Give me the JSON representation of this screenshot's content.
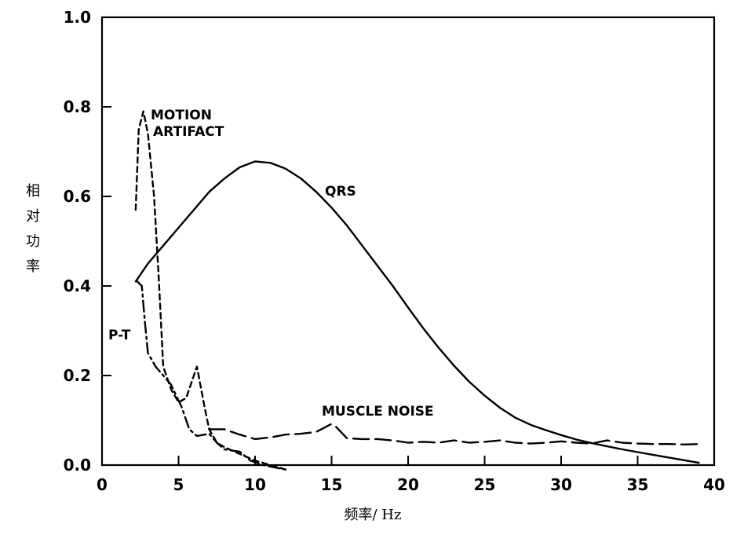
{
  "chart_data": {
    "type": "line",
    "title": "",
    "xlabel": "频率/ Hz",
    "ylabel": "相对功率",
    "xlim": [
      0,
      40
    ],
    "ylim": [
      0,
      1.0
    ],
    "x_ticks": [
      "0",
      "5",
      "10",
      "15",
      "20",
      "25",
      "30",
      "35",
      "40"
    ],
    "y_ticks": [
      "0.0",
      "0.2",
      "0.4",
      "0.6",
      "0.8",
      "1.0"
    ],
    "grid": false,
    "series": [
      {
        "name": "QRS",
        "style": "solid",
        "points": [
          [
            2.2,
            0.41
          ],
          [
            3,
            0.45
          ],
          [
            4,
            0.49
          ],
          [
            5,
            0.53
          ],
          [
            6,
            0.57
          ],
          [
            7,
            0.61
          ],
          [
            8,
            0.64
          ],
          [
            9,
            0.665
          ],
          [
            10,
            0.678
          ],
          [
            11,
            0.675
          ],
          [
            12,
            0.662
          ],
          [
            13,
            0.64
          ],
          [
            14,
            0.61
          ],
          [
            15,
            0.575
          ],
          [
            16,
            0.535
          ],
          [
            17,
            0.49
          ],
          [
            18,
            0.445
          ],
          [
            19,
            0.4
          ],
          [
            20,
            0.352
          ],
          [
            21,
            0.305
          ],
          [
            22,
            0.262
          ],
          [
            23,
            0.222
          ],
          [
            24,
            0.186
          ],
          [
            25,
            0.155
          ],
          [
            26,
            0.128
          ],
          [
            27,
            0.106
          ],
          [
            28,
            0.09
          ],
          [
            29,
            0.078
          ],
          [
            30,
            0.067
          ],
          [
            31,
            0.057
          ],
          [
            32,
            0.049
          ],
          [
            33,
            0.042
          ],
          [
            34,
            0.035
          ],
          [
            35,
            0.029
          ],
          [
            36,
            0.023
          ],
          [
            37,
            0.017
          ],
          [
            38,
            0.011
          ],
          [
            39,
            0.005
          ]
        ]
      },
      {
        "name": "MOTION ARTIFACT",
        "style": "short-dash",
        "points": [
          [
            2.2,
            0.57
          ],
          [
            2.4,
            0.75
          ],
          [
            2.7,
            0.79
          ],
          [
            3.0,
            0.74
          ],
          [
            3.4,
            0.6
          ],
          [
            3.7,
            0.42
          ],
          [
            4.0,
            0.22
          ],
          [
            4.5,
            0.17
          ],
          [
            5,
            0.14
          ],
          [
            5.5,
            0.15
          ],
          [
            6.2,
            0.22
          ],
          [
            6.7,
            0.13
          ],
          [
            7.0,
            0.08
          ],
          [
            7.5,
            0.05
          ],
          [
            8,
            0.04
          ],
          [
            9,
            0.025
          ],
          [
            10,
            0.01
          ],
          [
            11,
            0.0
          ],
          [
            12,
            -0.01
          ]
        ]
      },
      {
        "name": "P-T",
        "style": "dash-dot",
        "points": [
          [
            2.3,
            0.41
          ],
          [
            2.6,
            0.4
          ],
          [
            2.8,
            0.32
          ],
          [
            3.0,
            0.25
          ],
          [
            3.5,
            0.22
          ],
          [
            4.5,
            0.18
          ],
          [
            5.2,
            0.13
          ],
          [
            5.7,
            0.08
          ],
          [
            6.2,
            0.065
          ],
          [
            7,
            0.07
          ],
          [
            7.5,
            0.05
          ],
          [
            8,
            0.035
          ],
          [
            9,
            0.03
          ],
          [
            9.7,
            0.01
          ],
          [
            10.5,
            0.0
          ],
          [
            12,
            -0.01
          ]
        ]
      },
      {
        "name": "MUSCLE NOISE",
        "style": "long-dash",
        "points": [
          [
            7,
            0.08
          ],
          [
            8,
            0.08
          ],
          [
            9,
            0.068
          ],
          [
            10,
            0.058
          ],
          [
            11,
            0.062
          ],
          [
            12,
            0.068
          ],
          [
            13,
            0.07
          ],
          [
            14,
            0.074
          ],
          [
            15,
            0.092
          ],
          [
            15.3,
            0.085
          ],
          [
            16,
            0.06
          ],
          [
            17,
            0.058
          ],
          [
            18,
            0.058
          ],
          [
            19,
            0.055
          ],
          [
            20,
            0.05
          ],
          [
            21,
            0.052
          ],
          [
            22,
            0.05
          ],
          [
            23,
            0.055
          ],
          [
            24,
            0.05
          ],
          [
            25,
            0.052
          ],
          [
            26,
            0.055
          ],
          [
            27,
            0.05
          ],
          [
            28,
            0.048
          ],
          [
            29,
            0.05
          ],
          [
            30,
            0.053
          ],
          [
            31,
            0.05
          ],
          [
            32,
            0.048
          ],
          [
            33,
            0.055
          ],
          [
            34,
            0.05
          ],
          [
            35,
            0.048
          ],
          [
            36,
            0.047
          ],
          [
            37,
            0.047
          ],
          [
            38,
            0.046
          ],
          [
            39,
            0.047
          ]
        ]
      }
    ],
    "annotations": {
      "motion_line1": "MOTION",
      "motion_line2": "ARTIFACT",
      "qrs": "QRS",
      "pt": "P-T",
      "muscle": "MUSCLE NOISE"
    }
  }
}
